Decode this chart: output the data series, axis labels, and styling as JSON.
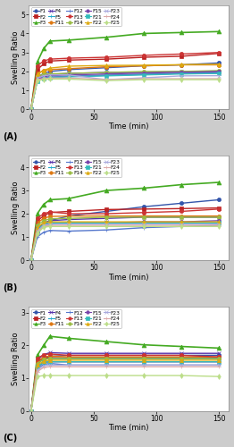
{
  "time_points": [
    0,
    5,
    10,
    15,
    30,
    60,
    90,
    120,
    150
  ],
  "panel_A": {
    "ylabel": "Swelling Ratio",
    "xlabel": "Time (min)",
    "ylim": [
      0,
      5.5
    ],
    "yticks": [
      0,
      1,
      2,
      3,
      4,
      5
    ],
    "label": "(A)",
    "series": {
      "F1": [
        0,
        1.7,
        1.9,
        2.0,
        2.1,
        2.2,
        2.3,
        2.35,
        2.45
      ],
      "F2": [
        0,
        2.1,
        2.4,
        2.55,
        2.6,
        2.65,
        2.75,
        2.8,
        2.95
      ],
      "F3": [
        0,
        2.5,
        3.2,
        3.6,
        3.65,
        3.8,
        4.0,
        4.05,
        4.1
      ],
      "F4": [
        0,
        1.65,
        1.8,
        1.85,
        1.9,
        1.95,
        1.95,
        2.0,
        2.0
      ],
      "F5": [
        0,
        1.55,
        1.65,
        1.7,
        1.75,
        1.8,
        1.85,
        1.9,
        1.9
      ],
      "F11": [
        0,
        1.9,
        2.05,
        2.1,
        2.15,
        2.25,
        2.3,
        2.35,
        2.35
      ],
      "F12": [
        0,
        1.55,
        1.65,
        1.7,
        1.75,
        1.8,
        1.85,
        1.9,
        1.95
      ],
      "F13": [
        0,
        2.3,
        2.55,
        2.65,
        2.7,
        2.75,
        2.85,
        2.92,
        3.0
      ],
      "F14": [
        0,
        1.75,
        1.85,
        1.88,
        1.9,
        1.95,
        2.0,
        2.0,
        2.05
      ],
      "F15": [
        0,
        1.6,
        1.72,
        1.78,
        1.82,
        1.87,
        1.92,
        1.96,
        2.0
      ],
      "F21": [
        0,
        1.5,
        1.62,
        1.67,
        1.72,
        1.77,
        1.82,
        1.87,
        1.9
      ],
      "F22": [
        0,
        1.85,
        2.05,
        2.18,
        2.28,
        2.32,
        2.33,
        2.36,
        2.38
      ],
      "F23": [
        0,
        1.65,
        1.78,
        1.82,
        1.82,
        1.57,
        1.67,
        1.77,
        1.78
      ],
      "F24": [
        0,
        1.57,
        1.63,
        1.65,
        1.66,
        1.57,
        1.62,
        1.62,
        1.62
      ],
      "F25": [
        0,
        1.52,
        1.58,
        1.6,
        1.6,
        1.52,
        1.57,
        1.57,
        1.57
      ]
    }
  },
  "panel_B": {
    "ylabel": "Swelling Ratio",
    "xlabel": "Time (min)",
    "ylim": [
      0,
      4.5
    ],
    "yticks": [
      0,
      1,
      2,
      3,
      4
    ],
    "label": "(B)",
    "series": {
      "F1": [
        0,
        1.2,
        1.5,
        1.7,
        1.9,
        2.1,
        2.3,
        2.45,
        2.6
      ],
      "F2": [
        0,
        1.7,
        1.9,
        2.05,
        2.1,
        2.18,
        2.2,
        2.22,
        2.25
      ],
      "F3": [
        0,
        2.0,
        2.4,
        2.6,
        2.65,
        3.0,
        3.1,
        3.25,
        3.35
      ],
      "F4": [
        0,
        1.3,
        1.6,
        1.7,
        1.75,
        1.8,
        1.85,
        1.85,
        1.85
      ],
      "F5": [
        0,
        1.2,
        1.45,
        1.55,
        1.6,
        1.6,
        1.6,
        1.6,
        1.6
      ],
      "F11": [
        0,
        1.6,
        1.8,
        1.88,
        1.9,
        1.9,
        1.9,
        1.9,
        1.9
      ],
      "F12": [
        0,
        1.0,
        1.2,
        1.28,
        1.25,
        1.3,
        1.4,
        1.45,
        1.5
      ],
      "F13": [
        0,
        1.8,
        2.0,
        2.08,
        2.0,
        2.0,
        2.05,
        2.1,
        2.2
      ],
      "F14": [
        0,
        1.5,
        1.7,
        1.78,
        1.8,
        1.85,
        1.85,
        1.85,
        1.85
      ],
      "F15": [
        0,
        1.3,
        1.55,
        1.6,
        1.6,
        1.6,
        1.65,
        1.65,
        1.7
      ],
      "F21": [
        0,
        1.3,
        1.55,
        1.6,
        1.6,
        1.6,
        1.6,
        1.6,
        1.6
      ],
      "F22": [
        0,
        1.4,
        1.62,
        1.65,
        1.65,
        1.65,
        1.65,
        1.65,
        1.65
      ],
      "F23": [
        0,
        1.25,
        1.5,
        1.55,
        1.55,
        1.55,
        1.55,
        1.55,
        1.55
      ],
      "F24": [
        0,
        1.2,
        1.45,
        1.5,
        1.5,
        1.5,
        1.5,
        1.5,
        1.5
      ],
      "F25": [
        0,
        1.15,
        1.42,
        1.45,
        1.45,
        1.45,
        1.45,
        1.45,
        1.45
      ]
    }
  },
  "panel_C": {
    "ylabel": "Swelling Ratio",
    "xlabel": "Time (min)",
    "ylim": [
      0,
      3.2
    ],
    "yticks": [
      0,
      1,
      2,
      3
    ],
    "label": "(C)",
    "series": {
      "F1": [
        0,
        1.45,
        1.6,
        1.67,
        1.7,
        1.7,
        1.7,
        1.7,
        1.7
      ],
      "F2": [
        0,
        1.5,
        1.6,
        1.63,
        1.62,
        1.62,
        1.62,
        1.62,
        1.62
      ],
      "F3": [
        0,
        1.7,
        2.0,
        2.28,
        2.22,
        2.12,
        2.02,
        1.97,
        1.92
      ],
      "F4": [
        0,
        1.55,
        1.72,
        1.78,
        1.76,
        1.76,
        1.76,
        1.76,
        1.76
      ],
      "F5": [
        0,
        1.45,
        1.57,
        1.6,
        1.6,
        1.6,
        1.6,
        1.6,
        1.6
      ],
      "F11": [
        0,
        1.5,
        1.65,
        1.68,
        1.65,
        1.65,
        1.65,
        1.65,
        1.65
      ],
      "F12": [
        0,
        1.3,
        1.42,
        1.45,
        1.4,
        1.4,
        1.4,
        1.4,
        1.4
      ],
      "F13": [
        0,
        1.6,
        1.72,
        1.74,
        1.7,
        1.7,
        1.7,
        1.7,
        1.65
      ],
      "F14": [
        0,
        1.45,
        1.58,
        1.6,
        1.6,
        1.6,
        1.6,
        1.6,
        1.6
      ],
      "F15": [
        0,
        1.35,
        1.48,
        1.5,
        1.5,
        1.5,
        1.5,
        1.5,
        1.5
      ],
      "F21": [
        0,
        1.35,
        1.48,
        1.5,
        1.5,
        1.5,
        1.5,
        1.5,
        1.5
      ],
      "F22": [
        0,
        1.4,
        1.52,
        1.55,
        1.55,
        1.55,
        1.55,
        1.55,
        1.55
      ],
      "F23": [
        0,
        1.25,
        1.38,
        1.4,
        1.4,
        1.4,
        1.4,
        1.4,
        1.4
      ],
      "F24": [
        0,
        1.2,
        1.33,
        1.35,
        1.35,
        1.35,
        1.35,
        1.35,
        1.35
      ],
      "F25": [
        0,
        1.05,
        1.08,
        1.08,
        1.08,
        1.08,
        1.08,
        1.08,
        1.05
      ]
    }
  },
  "series_styles": {
    "F1": {
      "color": "#3355aa",
      "marker": "o",
      "lw": 1.0,
      "ms": 3.0
    },
    "F2": {
      "color": "#bb2222",
      "marker": "s",
      "lw": 1.0,
      "ms": 3.0
    },
    "F3": {
      "color": "#44aa22",
      "marker": "^",
      "lw": 1.2,
      "ms": 3.5
    },
    "F4": {
      "color": "#5533aa",
      "marker": "x",
      "lw": 1.0,
      "ms": 3.0
    },
    "F5": {
      "color": "#22aacc",
      "marker": "+",
      "lw": 1.0,
      "ms": 3.0
    },
    "F11": {
      "color": "#dd7711",
      "marker": "o",
      "lw": 1.0,
      "ms": 3.0
    },
    "F12": {
      "color": "#5577cc",
      "marker": "+",
      "lw": 1.0,
      "ms": 3.0
    },
    "F13": {
      "color": "#cc3333",
      "marker": "o",
      "lw": 1.0,
      "ms": 3.0
    },
    "F14": {
      "color": "#99bb44",
      "marker": "o",
      "lw": 1.0,
      "ms": 3.0
    },
    "F15": {
      "color": "#7744aa",
      "marker": "o",
      "lw": 1.0,
      "ms": 3.0
    },
    "F21": {
      "color": "#33bbbb",
      "marker": "s",
      "lw": 1.0,
      "ms": 3.0
    },
    "F22": {
      "color": "#ddaa11",
      "marker": "^",
      "lw": 1.0,
      "ms": 3.0
    },
    "F23": {
      "color": "#aaaadd",
      "marker": "x",
      "lw": 1.0,
      "ms": 3.0
    },
    "F24": {
      "color": "#ddaaaa",
      "marker": "+",
      "lw": 1.0,
      "ms": 3.0
    },
    "F25": {
      "color": "#bbdd88",
      "marker": "d",
      "lw": 1.0,
      "ms": 3.0
    }
  },
  "legend_order": [
    "F1",
    "F2",
    "F3",
    "F4",
    "F5",
    "F11",
    "F12",
    "F13",
    "F14",
    "F15",
    "F21",
    "F22",
    "F23",
    "F24",
    "F25"
  ],
  "bg_color": "#cccccc",
  "plot_bg": "#ffffff"
}
